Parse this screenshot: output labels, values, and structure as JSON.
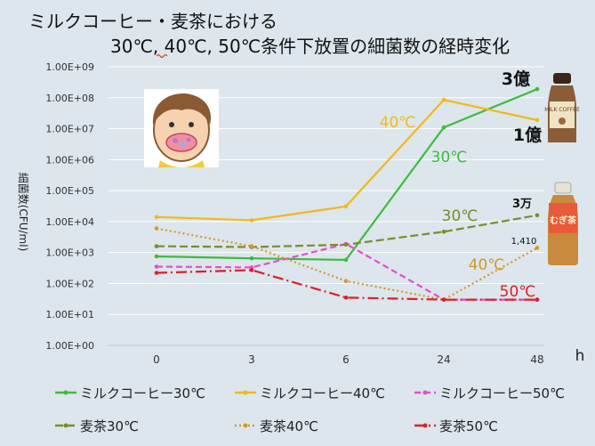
{
  "title": {
    "line1": "ミルクコーヒー・麦茶における",
    "line2": "30℃, 40℃, 50℃条件下放置の細菌数の経時変化"
  },
  "chart_data": {
    "type": "line",
    "ylabel": "細菌数(CFU/ml)",
    "x_unit_label": "h",
    "y_scale": "log",
    "ylim": [
      1,
      1000000000
    ],
    "y_tick_values": [
      1,
      10,
      100,
      1000,
      10000,
      100000,
      1000000,
      10000000,
      100000000,
      1000000000
    ],
    "y_tick_labels": [
      "1.00E+00",
      "1.00E+01",
      "1.00E+02",
      "1.00E+03",
      "1.00E+04",
      "1.00E+05",
      "1.00E+06",
      "1.00E+07",
      "1.00E+08",
      "1.00E+09"
    ],
    "categories": [
      "0",
      "3",
      "6",
      "24",
      "48"
    ],
    "grid": true,
    "legend_position": "bottom",
    "series": [
      {
        "name": "ミルクコーヒー30℃",
        "color": "#3dbb3d",
        "dash": "solid",
        "marker": "circle",
        "values": [
          750,
          650,
          580,
          11000000,
          190000000
        ]
      },
      {
        "name": "ミルクコーヒー40℃",
        "color": "#f2b81a",
        "dash": "solid",
        "marker": "circle",
        "values": [
          14000,
          11000,
          31000,
          85000000,
          19000000
        ]
      },
      {
        "name": "ミルクコーヒー50℃",
        "color": "#e94bd0",
        "dash": "dash",
        "marker": "circle",
        "values": [
          350,
          330,
          1900,
          30,
          30
        ]
      },
      {
        "name": "麦茶30℃",
        "color": "#7a8c2a",
        "dash": "longdash",
        "marker": "circle",
        "values": [
          1600,
          1500,
          1800,
          4700,
          16000
        ]
      },
      {
        "name": "麦茶40℃",
        "color": "#d8962a",
        "dash": "dot",
        "marker": "circle",
        "values": [
          6000,
          1600,
          120,
          30,
          1410
        ]
      },
      {
        "name": "麦茶50℃",
        "color": "#d8212a",
        "dash": "dashdot",
        "marker": "circle",
        "values": [
          220,
          270,
          35,
          30,
          30
        ]
      }
    ],
    "annotations": [
      {
        "text": "40℃",
        "color": "#f2b81a"
      },
      {
        "text": "30℃",
        "color": "#3dbb3d"
      },
      {
        "text": "30℃",
        "color": "#7a8c2a"
      },
      {
        "text": "40℃",
        "color": "#d8962a"
      },
      {
        "text": "50℃",
        "color": "#d8212a"
      },
      {
        "text": "3億",
        "color": "#111111"
      },
      {
        "text": "1億",
        "color": "#111111"
      },
      {
        "text": "3万",
        "color": "#111111"
      },
      {
        "text": "1,410",
        "color": "#111111"
      }
    ]
  },
  "images": {
    "child": "child-mouth-illustration",
    "coffee_bottle": "milk-coffee-bottle",
    "coffee_bottle_label": "MILK COFFEE",
    "tea_bottle": "mugicha-bottle",
    "tea_bottle_label": "むぎ茶"
  }
}
